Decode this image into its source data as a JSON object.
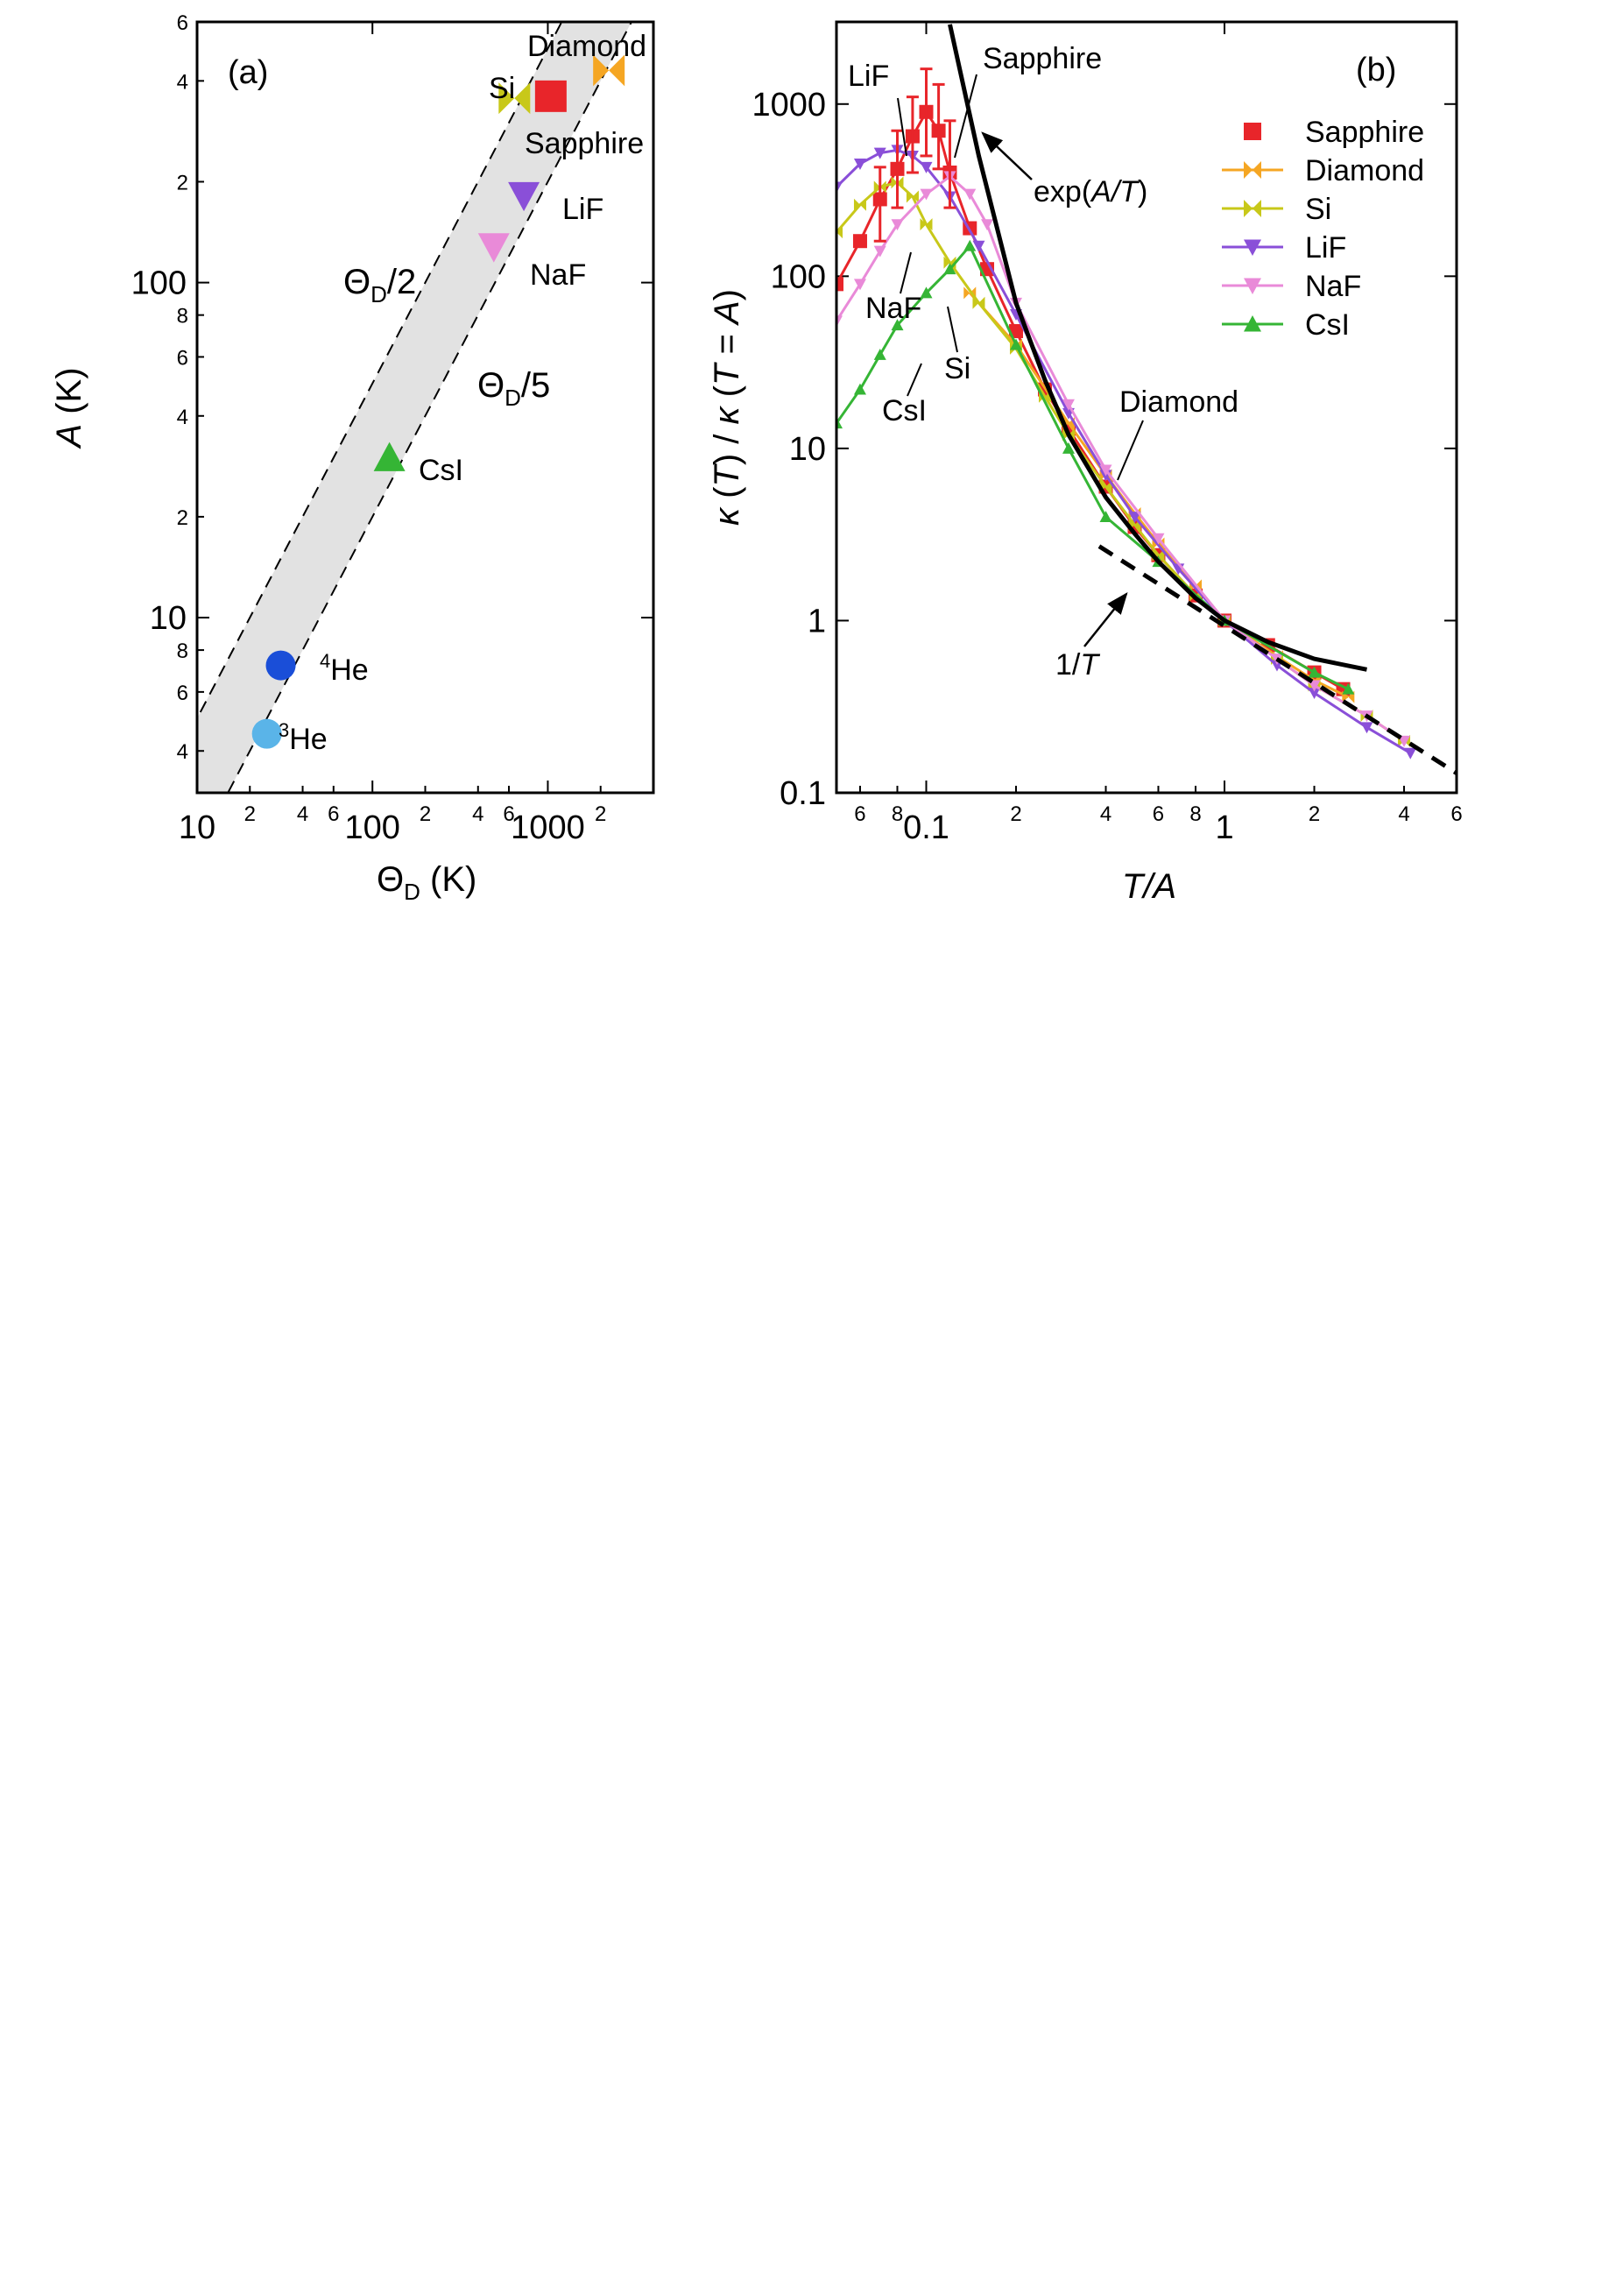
{
  "chart_data": [
    {
      "panel": "(a)",
      "type": "scatter",
      "xlabel": "Θ_D (K)",
      "ylabel": "A (K)",
      "x_scale": "log",
      "y_scale": "log",
      "xlim": [
        10,
        4000
      ],
      "ylim": [
        3,
        600
      ],
      "x_ticks_major": [
        {
          "v": 10,
          "l": "10"
        },
        {
          "v": 100,
          "l": "100"
        },
        {
          "v": 1000,
          "l": "1000"
        }
      ],
      "x_ticks_minor": [
        {
          "v": 20,
          "l": "2"
        },
        {
          "v": 40,
          "l": "4"
        },
        {
          "v": 60,
          "l": "6"
        },
        {
          "v": 200,
          "l": "2"
        },
        {
          "v": 400,
          "l": "4"
        },
        {
          "v": 600,
          "l": "6"
        },
        {
          "v": 2000,
          "l": "2"
        }
      ],
      "y_ticks_major": [
        {
          "v": 10,
          "l": "10"
        },
        {
          "v": 100,
          "l": "100"
        }
      ],
      "y_ticks_minor": [
        {
          "v": 4,
          "l": "4"
        },
        {
          "v": 6,
          "l": "6"
        },
        {
          "v": 8,
          "l": "8"
        },
        {
          "v": 20,
          "l": "2"
        },
        {
          "v": 40,
          "l": "4"
        },
        {
          "v": 60,
          "l": "6"
        },
        {
          "v": 80,
          "l": "8"
        },
        {
          "v": 200,
          "l": "2"
        },
        {
          "v": 400,
          "l": "4"
        },
        {
          "v": 600,
          "l": "6"
        }
      ],
      "band": {
        "upper_label": "Θ_D/2",
        "lower_label": "Θ_D/5",
        "upper_factor": 0.5,
        "lower_factor": 0.2,
        "fill": "#e2e2e2"
      },
      "points": [
        {
          "name": "Diamond",
          "theta_d": 2230,
          "A": 430,
          "color": "#f5a623",
          "marker": "bowtie"
        },
        {
          "name": "Si",
          "theta_d": 645,
          "A": 355,
          "color": "#c8c819",
          "marker": "bowtie"
        },
        {
          "name": "Sapphire",
          "theta_d": 1040,
          "A": 360,
          "color": "#e8252a",
          "marker": "square"
        },
        {
          "name": "LiF",
          "theta_d": 730,
          "A": 182,
          "color": "#8a4fd8",
          "marker": "triangle-down"
        },
        {
          "name": "NaF",
          "theta_d": 492,
          "A": 128,
          "color": "#e98ad8",
          "marker": "triangle-down"
        },
        {
          "name": "CsI",
          "theta_d": 125,
          "A": 30,
          "color": "#35b535",
          "marker": "triangle-up"
        },
        {
          "name": "4He",
          "theta_d": 30,
          "A": 7.2,
          "color": "#1a4ed8",
          "marker": "circle"
        },
        {
          "name": "3He",
          "theta_d": 25,
          "A": 4.5,
          "color": "#5ab4e8",
          "marker": "circle"
        }
      ],
      "labels": {
        "panel": "(a)",
        "diamond": "Diamond",
        "si": "Si",
        "sapphire": "Sapphire",
        "lif": "LiF",
        "naf": "NaF",
        "csi": "CsI",
        "he4_sup": "4",
        "he4": "He",
        "he3_sup": "3",
        "he3": "He",
        "theta": "Θ",
        "theta_sub": "D",
        "half": "/2",
        "fifth": "/5",
        "xunit": " (K)",
        "yvar": "A",
        "yunit": " (K)"
      }
    },
    {
      "panel": "(b)",
      "type": "line",
      "xlabel": "T/A",
      "ylabel": "κ(T) / κ(T = A)",
      "x_scale": "log",
      "y_scale": "log",
      "xlim": [
        0.05,
        6
      ],
      "ylim": [
        0.1,
        3000
      ],
      "x_ticks_major": [
        {
          "v": 0.1,
          "l": "0.1"
        },
        {
          "v": 1,
          "l": "1"
        }
      ],
      "x_ticks_minor": [
        {
          "v": 0.06,
          "l": "6"
        },
        {
          "v": 0.08,
          "l": "8"
        },
        {
          "v": 0.2,
          "l": "2"
        },
        {
          "v": 0.4,
          "l": "4"
        },
        {
          "v": 0.6,
          "l": "6"
        },
        {
          "v": 0.8,
          "l": "8"
        },
        {
          "v": 2,
          "l": "2"
        },
        {
          "v": 4,
          "l": "4"
        },
        {
          "v": 6,
          "l": "6"
        }
      ],
      "y_ticks_major": [
        {
          "v": 0.1,
          "l": "0.1"
        },
        {
          "v": 1,
          "l": "1"
        },
        {
          "v": 10,
          "l": "10"
        },
        {
          "v": 100,
          "l": "100"
        },
        {
          "v": 1000,
          "l": "1000"
        }
      ],
      "legend_position": "top-right",
      "series": [
        {
          "name": "Sapphire",
          "color": "#e8252a",
          "marker": "square",
          "x": [
            0.05,
            0.06,
            0.07,
            0.08,
            0.09,
            0.1,
            0.11,
            0.12,
            0.14,
            0.16,
            0.2,
            0.25,
            0.3,
            0.4,
            0.5,
            0.6,
            0.8,
            1.0,
            1.4,
            2.0,
            2.5
          ],
          "y": [
            90,
            160,
            280,
            420,
            650,
            900,
            700,
            400,
            190,
            110,
            48,
            22,
            13,
            6,
            3.5,
            2.4,
            1.4,
            1.0,
            0.72,
            0.5,
            0.4
          ]
        },
        {
          "name": "Diamond",
          "color": "#f5a623",
          "marker": "bowtie",
          "x": [
            0.14,
            0.2,
            0.3,
            0.4,
            0.5,
            0.6,
            0.8,
            1.0,
            1.5,
            2.0,
            2.6
          ],
          "y": [
            80,
            40,
            14,
            7,
            4.2,
            2.8,
            1.6,
            1.0,
            0.62,
            0.45,
            0.36
          ]
        },
        {
          "name": "Si",
          "color": "#c8c819",
          "marker": "bowtie",
          "x": [
            0.05,
            0.06,
            0.07,
            0.08,
            0.09,
            0.1,
            0.12,
            0.15,
            0.2,
            0.25,
            0.3,
            0.4,
            0.5,
            0.6,
            0.8,
            1.0,
            1.5,
            2.0,
            3.0,
            4.0
          ],
          "y": [
            180,
            260,
            330,
            350,
            290,
            200,
            120,
            70,
            38,
            20,
            12,
            6,
            3.6,
            2.4,
            1.4,
            1.0,
            0.6,
            0.42,
            0.28,
            0.2
          ]
        },
        {
          "name": "LiF",
          "color": "#8a4fd8",
          "marker": "triangle-down",
          "x": [
            0.05,
            0.06,
            0.07,
            0.08,
            0.09,
            0.1,
            0.12,
            0.15,
            0.2,
            0.3,
            0.4,
            0.5,
            0.7,
            1.0,
            1.5,
            2.0,
            3.0,
            4.2
          ],
          "y": [
            330,
            450,
            520,
            540,
            500,
            430,
            290,
            150,
            60,
            16,
            7,
            4,
            2,
            1.0,
            0.55,
            0.38,
            0.24,
            0.17
          ]
        },
        {
          "name": "NaF",
          "color": "#e98ad8",
          "marker": "triangle-down",
          "x": [
            0.05,
            0.06,
            0.07,
            0.08,
            0.1,
            0.12,
            0.14,
            0.16,
            0.2,
            0.3,
            0.4,
            0.6,
            1.0,
            1.5,
            2.0,
            3.0,
            4.0
          ],
          "y": [
            55,
            90,
            140,
            200,
            300,
            380,
            300,
            200,
            70,
            18,
            7.5,
            3,
            1.0,
            0.6,
            0.42,
            0.28,
            0.2
          ]
        },
        {
          "name": "CsI",
          "color": "#35b535",
          "marker": "triangle-up",
          "x": [
            0.05,
            0.06,
            0.07,
            0.08,
            0.1,
            0.12,
            0.14,
            0.2,
            0.3,
            0.4,
            0.6,
            1.0,
            2.0,
            2.6
          ],
          "y": [
            14,
            22,
            35,
            52,
            80,
            110,
            150,
            40,
            10,
            4,
            2.2,
            1.0,
            0.5,
            0.4
          ]
        }
      ],
      "sapphire_error_bars": [
        {
          "x": 0.07,
          "lo": 160,
          "hi": 430
        },
        {
          "x": 0.08,
          "lo": 250,
          "hi": 700
        },
        {
          "x": 0.09,
          "lo": 400,
          "hi": 1100
        },
        {
          "x": 0.1,
          "lo": 500,
          "hi": 1600
        },
        {
          "x": 0.11,
          "lo": 420,
          "hi": 1300
        },
        {
          "x": 0.12,
          "lo": 250,
          "hi": 800
        }
      ],
      "exp_curve": {
        "label_pre": "exp(",
        "label_var": "A/T",
        "label_post": ")",
        "x": [
          0.12,
          0.15,
          0.2,
          0.25,
          0.3,
          0.4,
          0.5,
          0.6,
          0.8,
          1.0,
          1.4,
          2.0,
          3.0
        ],
        "y": [
          2900,
          500,
          70,
          25,
          12,
          5.2,
          3.2,
          2.2,
          1.35,
          1.0,
          0.75,
          0.6,
          0.52
        ]
      },
      "inv_t_line": {
        "label_num": "1/",
        "label_var": "T",
        "x": [
          0.38,
          6
        ],
        "y": [
          2.7,
          0.13
        ]
      },
      "labels": {
        "panel": "(b)",
        "lif": "LiF",
        "sapphire": "Sapphire",
        "naf": "NaF",
        "si": "Si",
        "csi": "CsI",
        "diamond": "Diamond",
        "xlabel": "T/A"
      }
    }
  ]
}
